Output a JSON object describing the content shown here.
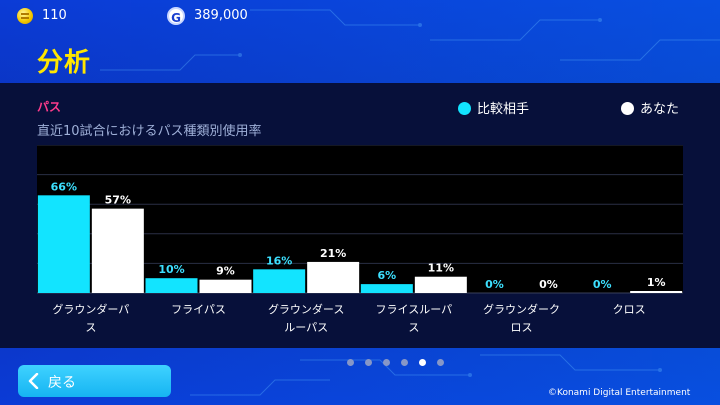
{
  "status": {
    "coins": "110",
    "gp": "389,000",
    "gp_glyph": "G"
  },
  "page_title": "分析",
  "section_label": "パス",
  "subtitle": "直近10試合におけるパス種類別使用率",
  "legend": {
    "rival": "比較相手",
    "you": "あなた"
  },
  "colors": {
    "rival": "#12e4ff",
    "you": "#ffffff",
    "rival_text": "#3de0ff",
    "you_text": "#ffffff"
  },
  "chart_data": {
    "type": "bar",
    "categories": [
      [
        "グラウンダーパ",
        "ス"
      ],
      [
        "フライパス"
      ],
      [
        "グラウンダース",
        "ルーパス"
      ],
      [
        "フライスルーパ",
        "ス"
      ],
      [
        "グラウンダーク",
        "ロス"
      ],
      [
        "クロス"
      ]
    ],
    "series": [
      {
        "name": "比較相手",
        "values": [
          66,
          10,
          16,
          6,
          0,
          0
        ],
        "labels": [
          "66%",
          "10%",
          "16%",
          "6%",
          "0%",
          "0%"
        ]
      },
      {
        "name": "あなた",
        "values": [
          57,
          9,
          21,
          11,
          0,
          1
        ],
        "labels": [
          "57%",
          "9%",
          "21%",
          "11%",
          "0%",
          "1%"
        ]
      }
    ],
    "ylim": [
      0,
      100
    ],
    "grid": true
  },
  "pagination": {
    "count": 6,
    "active": 4
  },
  "back_button": "戻る",
  "copyright": "©Konami Digital Entertainment"
}
